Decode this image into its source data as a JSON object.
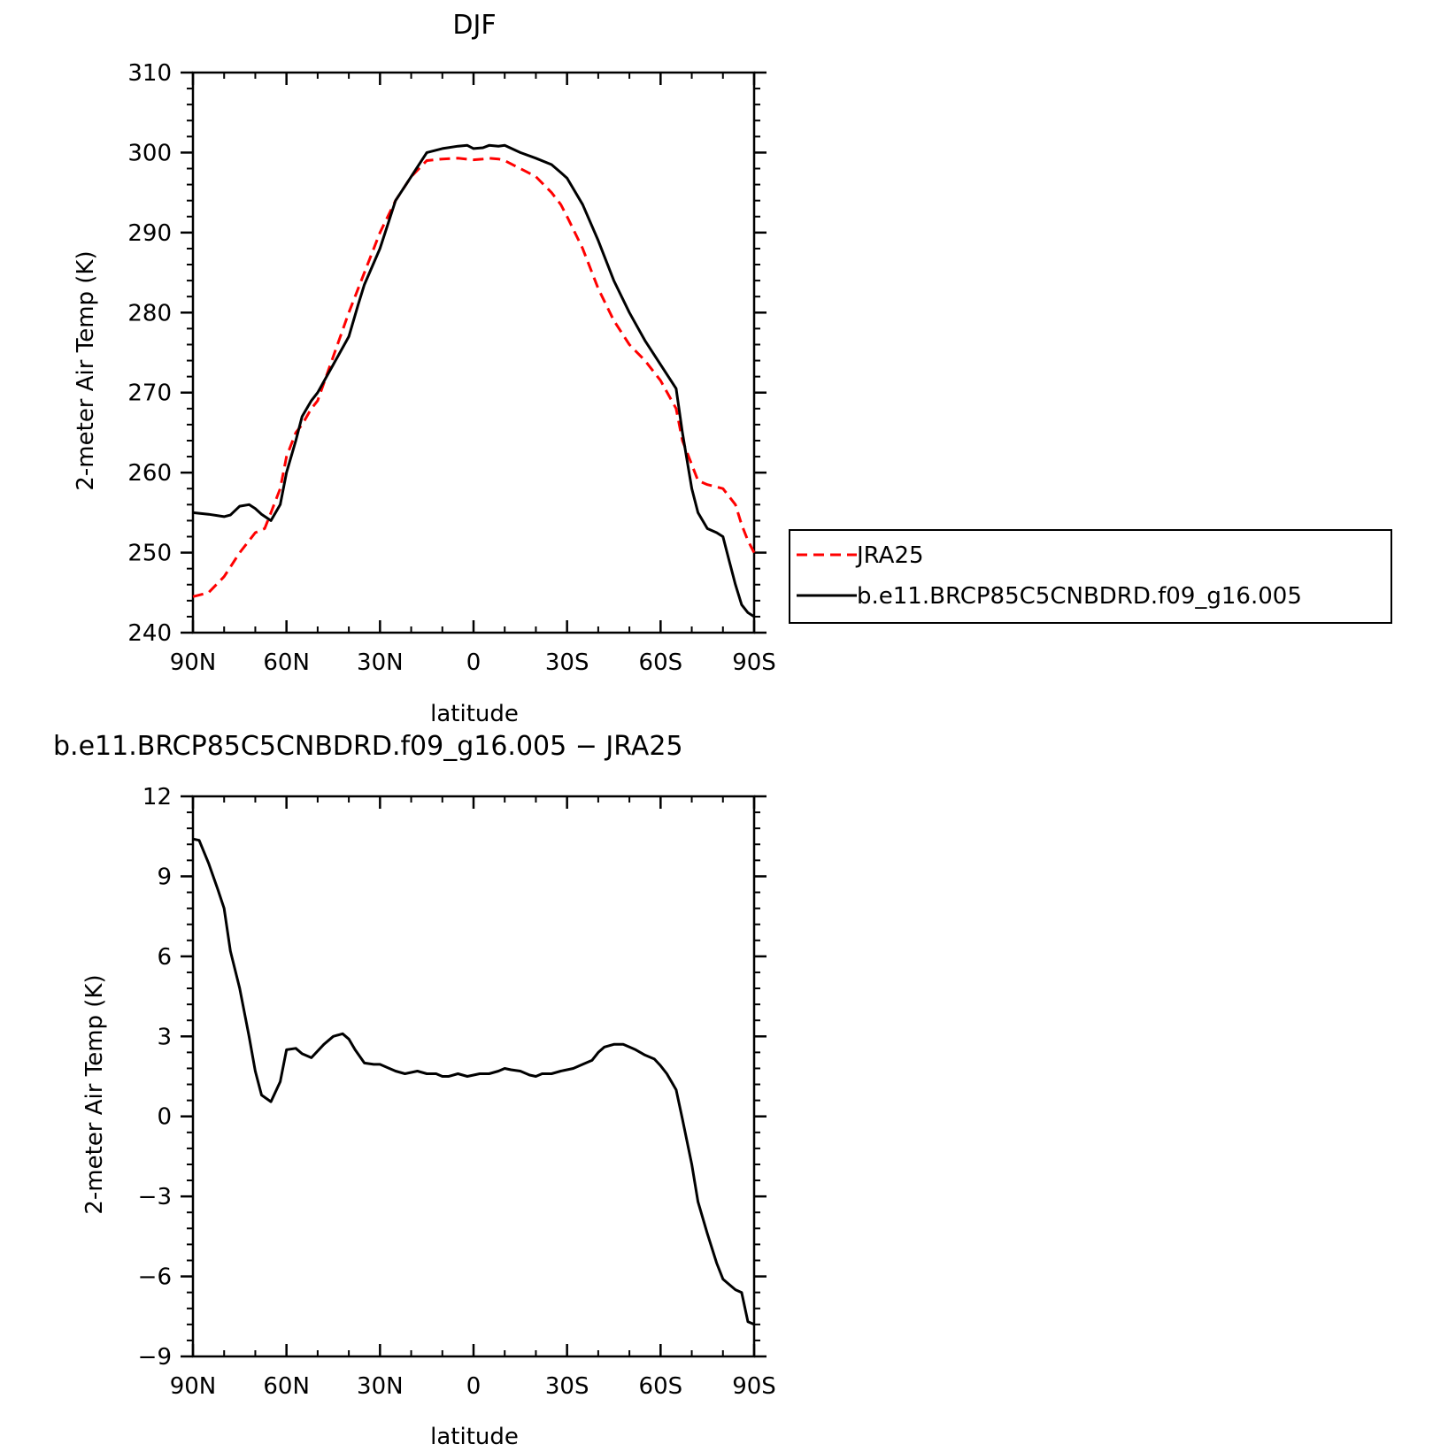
{
  "chart_data": [
    {
      "type": "line",
      "title": "DJF",
      "xlabel": "latitude",
      "ylabel": "2-meter Air Temp (K)",
      "xlim": [
        90,
        -90
      ],
      "ylim": [
        240,
        310
      ],
      "xticks": [
        90,
        60,
        30,
        0,
        -30,
        -60,
        -90
      ],
      "xtick_labels": [
        "90N",
        "60N",
        "30N",
        "0",
        "30S",
        "60S",
        "90S"
      ],
      "yticks": [
        240,
        250,
        260,
        270,
        280,
        290,
        300,
        310
      ],
      "ytick_labels": [
        "240",
        "250",
        "260",
        "270",
        "280",
        "290",
        "300",
        "310"
      ],
      "legend_placement": "right",
      "series": [
        {
          "name": "JRA25",
          "color": "#ff0000",
          "dash": "dashed",
          "x": [
            90,
            85,
            80,
            75,
            70,
            67,
            65,
            62,
            60,
            57,
            55,
            52,
            50,
            45,
            40,
            35,
            30,
            25,
            20,
            15,
            10,
            5,
            0,
            -3,
            -5,
            -8,
            -10,
            -15,
            -20,
            -25,
            -28,
            -30,
            -35,
            -40,
            -45,
            -50,
            -55,
            -60,
            -65,
            -67,
            -70,
            -72,
            -75,
            -80,
            -84,
            -86,
            -88,
            -90
          ],
          "y": [
            244.5,
            245,
            247,
            250,
            252.5,
            253,
            255,
            258,
            262,
            265,
            266,
            268,
            269,
            274.5,
            280,
            285,
            290,
            294,
            297,
            299,
            299.2,
            299.3,
            299.1,
            299.2,
            299.3,
            299.2,
            299,
            298,
            297,
            295,
            293.5,
            292,
            288,
            283,
            279,
            276,
            274,
            271.5,
            268,
            264,
            261,
            259,
            258.5,
            258,
            256,
            253.5,
            251.5,
            250
          ]
        },
        {
          "name": "b.e11.BRCP85C5CNBDRD.f09_g16.005",
          "color": "#000000",
          "dash": "solid",
          "x": [
            90,
            85,
            80,
            78,
            75,
            72,
            70,
            68,
            65,
            62,
            60,
            57,
            55,
            52,
            50,
            45,
            40,
            37,
            35,
            30,
            25,
            20,
            15,
            10,
            5,
            2,
            0,
            -3,
            -5,
            -8,
            -10,
            -15,
            -20,
            -25,
            -28,
            -30,
            -35,
            -40,
            -45,
            -50,
            -55,
            -60,
            -65,
            -67,
            -70,
            -72,
            -75,
            -78,
            -80,
            -82,
            -84,
            -86,
            -88,
            -90
          ],
          "y": [
            255,
            254.8,
            254.5,
            254.7,
            255.8,
            256,
            255.5,
            254.8,
            254,
            256,
            260,
            264,
            267,
            269,
            270,
            273.5,
            277,
            281,
            283.5,
            288,
            294,
            297,
            300,
            300.5,
            300.8,
            300.9,
            300.5,
            300.6,
            300.9,
            300.8,
            300.9,
            300,
            299.3,
            298.5,
            297.5,
            296.8,
            293.5,
            289,
            284,
            280,
            276.5,
            273.5,
            270.5,
            265,
            258,
            255,
            253,
            252.5,
            252,
            249,
            246,
            243.5,
            242.5,
            242
          ]
        }
      ]
    },
    {
      "type": "line",
      "title": "b.e11.BRCP85C5CNBDRD.f09_g16.005 − JRA25",
      "xlabel": "latitude",
      "ylabel": "2-meter Air Temp (K)",
      "xlim": [
        90,
        -90
      ],
      "ylim": [
        -9,
        12
      ],
      "xticks": [
        90,
        60,
        30,
        0,
        -30,
        -60,
        -90
      ],
      "xtick_labels": [
        "90N",
        "60N",
        "30N",
        "0",
        "30S",
        "60S",
        "90S"
      ],
      "yticks": [
        -9,
        -6,
        -3,
        0,
        3,
        6,
        9,
        12
      ],
      "ytick_labels": [
        "−9",
        "−6",
        "−3",
        "0",
        "3",
        "6",
        "9",
        "12"
      ],
      "series": [
        {
          "color": "#000000",
          "dash": "solid",
          "x": [
            90,
            88,
            85,
            82,
            80,
            78,
            75,
            72,
            70,
            68,
            65,
            62,
            60,
            57,
            55,
            52,
            48,
            45,
            42,
            40,
            38,
            35,
            32,
            30,
            27,
            25,
            22,
            20,
            18,
            15,
            12,
            10,
            8,
            5,
            2,
            0,
            -2,
            -5,
            -8,
            -10,
            -12,
            -15,
            -18,
            -20,
            -22,
            -25,
            -28,
            -30,
            -32,
            -35,
            -38,
            -40,
            -42,
            -45,
            -48,
            -50,
            -52,
            -55,
            -58,
            -60,
            -62,
            -65,
            -67,
            -70,
            -72,
            -75,
            -78,
            -80,
            -82,
            -84,
            -86,
            -88,
            -90
          ],
          "y": [
            10.4,
            10.35,
            9.5,
            8.5,
            7.8,
            6.2,
            4.8,
            3.0,
            1.7,
            0.8,
            0.55,
            1.3,
            2.5,
            2.55,
            2.35,
            2.2,
            2.7,
            3.0,
            3.1,
            2.9,
            2.5,
            2.0,
            1.95,
            1.95,
            1.8,
            1.7,
            1.6,
            1.65,
            1.7,
            1.6,
            1.6,
            1.5,
            1.5,
            1.6,
            1.5,
            1.55,
            1.6,
            1.6,
            1.7,
            1.8,
            1.75,
            1.7,
            1.55,
            1.5,
            1.6,
            1.6,
            1.7,
            1.75,
            1.8,
            1.95,
            2.1,
            2.4,
            2.6,
            2.7,
            2.7,
            2.6,
            2.5,
            2.3,
            2.15,
            1.9,
            1.6,
            1.0,
            -0.1,
            -1.8,
            -3.2,
            -4.4,
            -5.5,
            -6.1,
            -6.3,
            -6.5,
            -6.6,
            -7.7,
            -7.8
          ]
        }
      ]
    }
  ]
}
